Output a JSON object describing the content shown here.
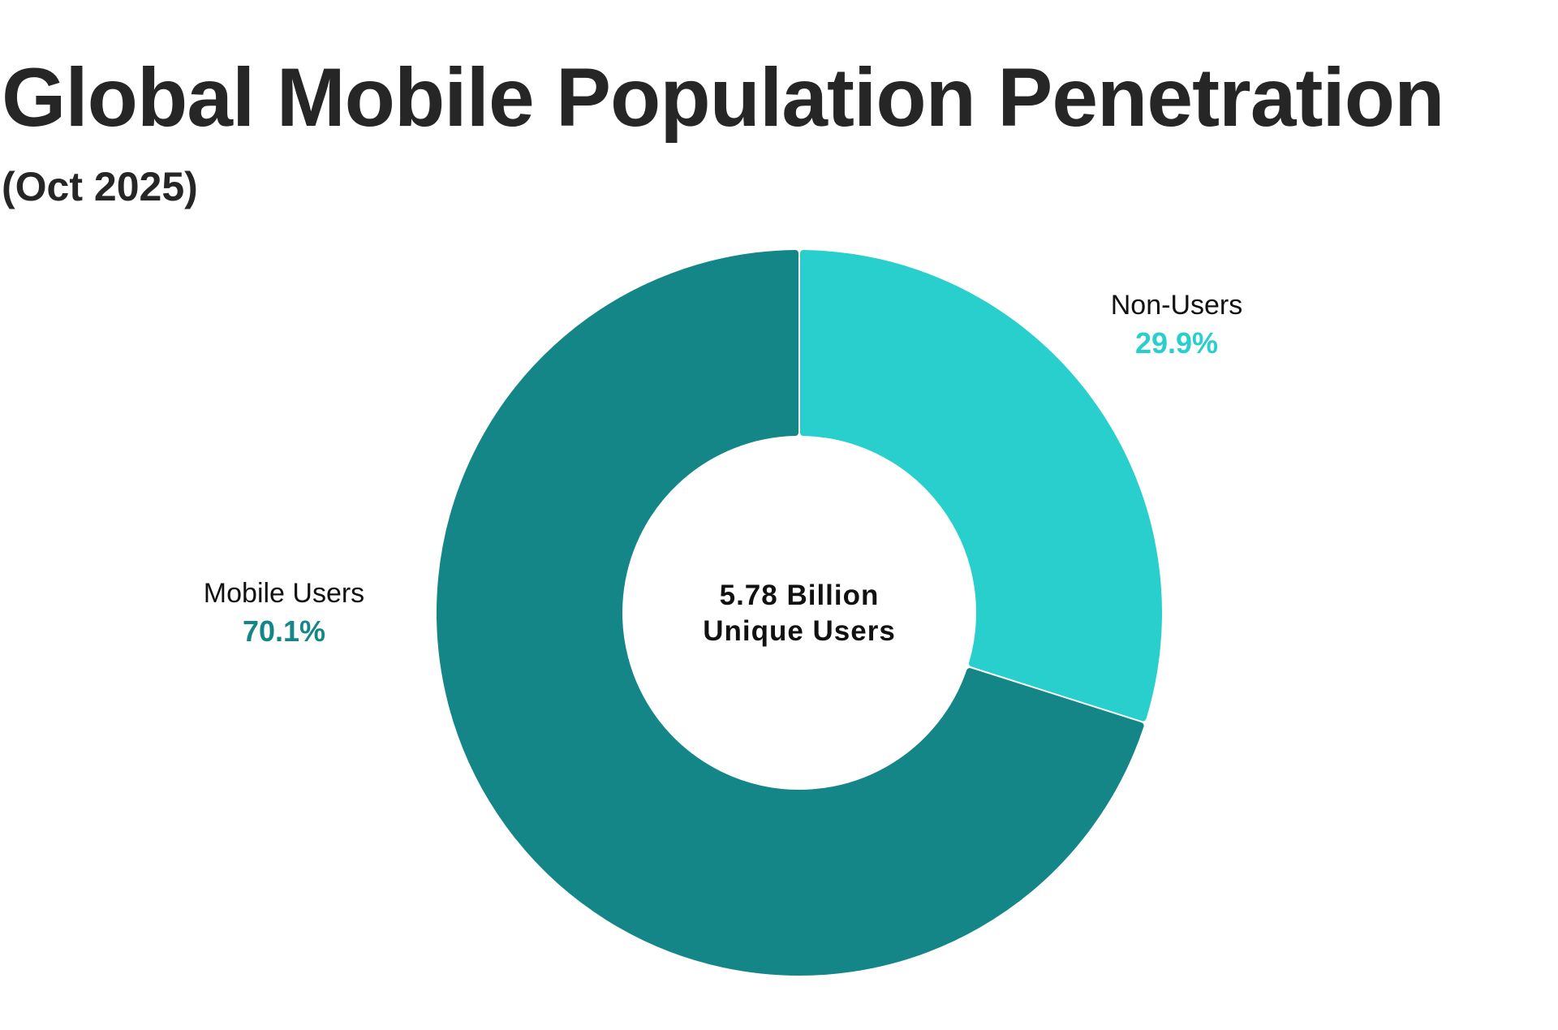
{
  "chart_data": {
    "type": "pie",
    "title": "Global Mobile Population Penetration",
    "subtitle": "(Oct 2025)",
    "center_label": [
      "5.78 Billion",
      "Unique Users"
    ],
    "slices": [
      {
        "name": "Mobile Users",
        "value": 70.1,
        "label": "70.1%",
        "color": "#148687"
      },
      {
        "name": "Non-Users",
        "value": 29.9,
        "label": "29.9%",
        "color": "#28cfcd"
      }
    ],
    "legend": "none"
  }
}
